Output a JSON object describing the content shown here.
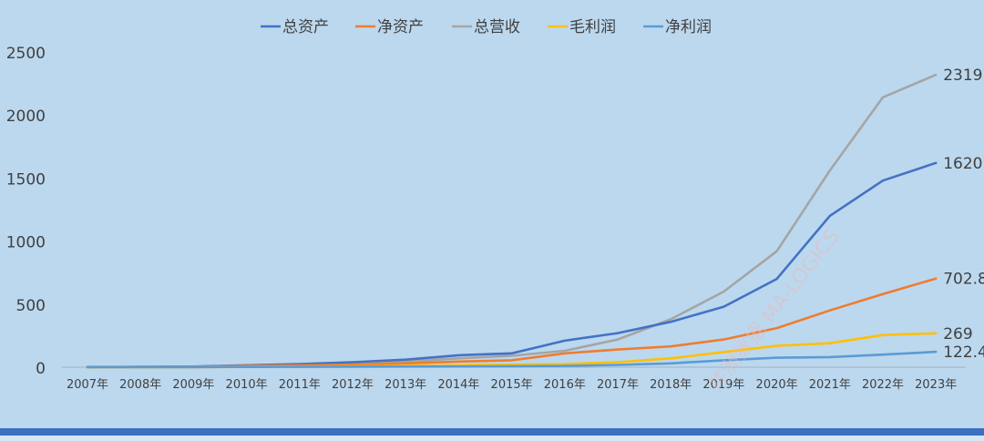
{
  "chart_data": {
    "type": "line",
    "categories": [
      "2007年",
      "2008年",
      "2009年",
      "2010年",
      "2011年",
      "2012年",
      "2013年",
      "2014年",
      "2015年",
      "2016年",
      "2017年",
      "2018年",
      "2019年",
      "2020年",
      "2021年",
      "2022年",
      "2023年"
    ],
    "ylim": [
      0,
      2500
    ],
    "yticks": [
      0,
      500,
      1000,
      1500,
      2000,
      2500
    ],
    "grid": false,
    "legend": "top",
    "series": [
      {
        "name": "总资产",
        "color": "#4472c4",
        "values": [
          2,
          3,
          5,
          15,
          25,
          40,
          60,
          95,
          110,
          210,
          270,
          360,
          480,
          700,
          1200,
          1480,
          1620
        ],
        "end_label": "1620"
      },
      {
        "name": "净资产",
        "color": "#ed7d31",
        "values": [
          1,
          2,
          3,
          10,
          15,
          20,
          30,
          45,
          55,
          110,
          140,
          165,
          220,
          310,
          450,
          580,
          702.8
        ],
        "end_label": "702.8"
      },
      {
        "name": "总营收",
        "color": "#a5a5a5",
        "values": [
          1,
          2,
          4,
          12,
          20,
          30,
          45,
          70,
          90,
          130,
          220,
          380,
          600,
          920,
          1560,
          2140,
          2319
        ],
        "end_label": "2319"
      },
      {
        "name": "毛利润",
        "color": "#ffc000",
        "values": [
          0,
          1,
          1,
          3,
          5,
          8,
          10,
          15,
          20,
          25,
          40,
          70,
          120,
          170,
          190,
          255,
          269
        ],
        "end_label": "269"
      },
      {
        "name": "净利润",
        "color": "#5b9bd5",
        "values": [
          0,
          0,
          1,
          2,
          3,
          4,
          5,
          6,
          8,
          10,
          18,
          30,
          55,
          75,
          80,
          100,
          122.4
        ],
        "end_label": "122.4"
      }
    ]
  },
  "watermark": "井洲数据 MA-LOGICS"
}
